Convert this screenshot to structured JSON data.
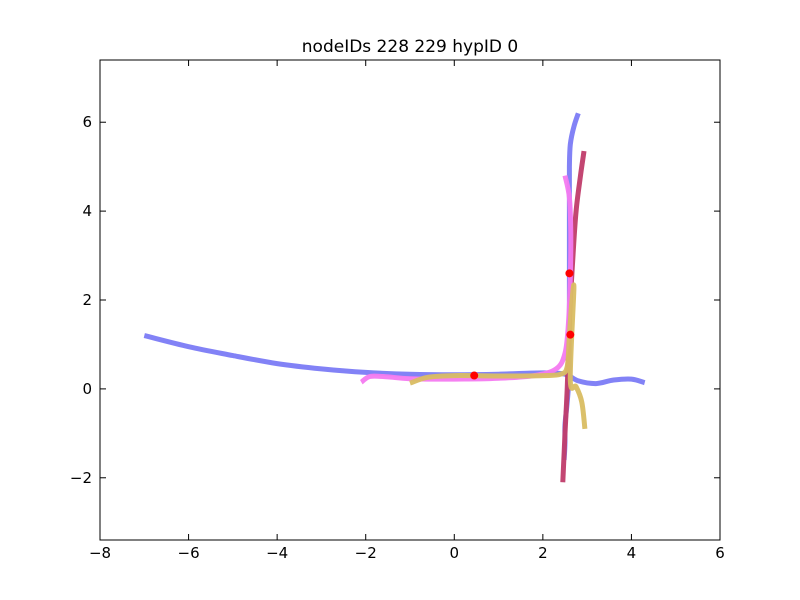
{
  "chart_data": {
    "type": "line",
    "title": "nodeIDs 228 229 hypID 0",
    "xlabel": "",
    "ylabel": "",
    "xlim": [
      -8,
      6
    ],
    "ylim": [
      -3.4,
      7.4
    ],
    "xticks": [
      -8,
      -6,
      -4,
      -2,
      0,
      2,
      4,
      6
    ],
    "yticks": [
      -2,
      0,
      2,
      4,
      6
    ],
    "xtick_labels": [
      "−8",
      "−6",
      "−4",
      "−2",
      "0",
      "2",
      "4",
      "6"
    ],
    "ytick_labels": [
      "−2",
      "0",
      "2",
      "4",
      "6"
    ],
    "grid": false,
    "series": [
      {
        "name": "blue-horizontal-curve",
        "color": "#7b7bf5",
        "opacity": 0.95,
        "points": [
          [
            -7.0,
            1.2
          ],
          [
            -6.0,
            0.95
          ],
          [
            -5.0,
            0.75
          ],
          [
            -4.0,
            0.57
          ],
          [
            -3.0,
            0.45
          ],
          [
            -2.0,
            0.37
          ],
          [
            -1.0,
            0.33
          ],
          [
            0.0,
            0.32
          ],
          [
            1.0,
            0.33
          ],
          [
            2.0,
            0.36
          ],
          [
            2.5,
            0.33
          ],
          [
            2.8,
            0.18
          ],
          [
            3.2,
            0.12
          ],
          [
            3.6,
            0.2
          ],
          [
            4.0,
            0.22
          ],
          [
            4.3,
            0.14
          ]
        ]
      },
      {
        "name": "blue-vertical-curve",
        "color": "#7b7bf5",
        "opacity": 0.95,
        "points": [
          [
            2.8,
            6.2
          ],
          [
            2.7,
            5.9
          ],
          [
            2.62,
            5.5
          ],
          [
            2.6,
            5.0
          ],
          [
            2.6,
            4.0
          ],
          [
            2.6,
            3.0
          ],
          [
            2.6,
            2.0
          ],
          [
            2.6,
            1.0
          ],
          [
            2.6,
            0.4
          ],
          [
            2.55,
            -0.3
          ],
          [
            2.5,
            -0.8
          ],
          [
            2.5,
            -1.2
          ],
          [
            2.48,
            -1.6
          ]
        ]
      },
      {
        "name": "crimson-vertical-curve",
        "color": "#c03c6a",
        "opacity": 0.95,
        "points": [
          [
            2.93,
            5.35
          ],
          [
            2.85,
            4.8
          ],
          [
            2.75,
            4.0
          ],
          [
            2.68,
            3.0
          ],
          [
            2.62,
            2.0
          ],
          [
            2.58,
            1.0
          ],
          [
            2.55,
            0.0
          ],
          [
            2.5,
            -1.0
          ],
          [
            2.45,
            -2.1
          ]
        ]
      },
      {
        "name": "magenta-curve",
        "color": "#f47af0",
        "opacity": 0.95,
        "points": [
          [
            -2.1,
            0.15
          ],
          [
            -1.9,
            0.28
          ],
          [
            -1.5,
            0.27
          ],
          [
            -1.0,
            0.23
          ],
          [
            0.0,
            0.22
          ],
          [
            1.0,
            0.24
          ],
          [
            1.8,
            0.3
          ],
          [
            2.3,
            0.45
          ],
          [
            2.5,
            0.8
          ],
          [
            2.58,
            1.5
          ],
          [
            2.62,
            2.5
          ],
          [
            2.63,
            3.5
          ],
          [
            2.6,
            4.3
          ],
          [
            2.5,
            4.8
          ]
        ]
      },
      {
        "name": "gold-curve",
        "color": "#d9bd62",
        "opacity": 0.95,
        "points": [
          [
            -1.0,
            0.13
          ],
          [
            -0.6,
            0.26
          ],
          [
            0.0,
            0.3
          ],
          [
            1.0,
            0.29
          ],
          [
            2.0,
            0.3
          ],
          [
            2.4,
            0.33
          ],
          [
            2.55,
            0.5
          ],
          [
            2.6,
            1.2
          ],
          [
            2.65,
            1.9
          ],
          [
            2.7,
            2.25
          ],
          [
            2.62,
            0.2
          ],
          [
            2.75,
            0.05
          ],
          [
            2.88,
            -0.3
          ],
          [
            2.95,
            -0.9
          ]
        ]
      }
    ],
    "markers": [
      {
        "name": "red-point",
        "color": "#ff0000",
        "points": [
          [
            0.45,
            0.3
          ],
          [
            2.6,
            2.6
          ],
          [
            2.62,
            1.22
          ]
        ]
      }
    ]
  }
}
